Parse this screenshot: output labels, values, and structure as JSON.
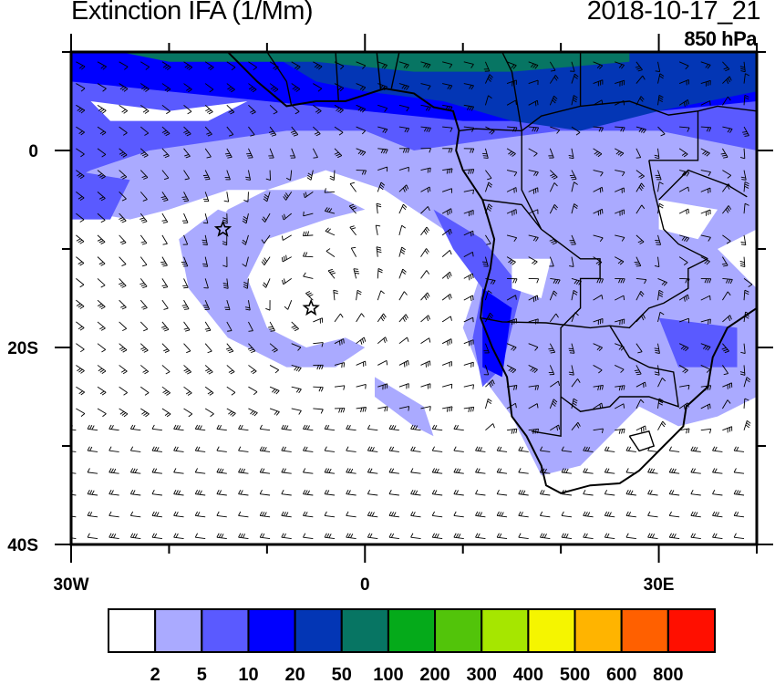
{
  "title_left": "Extinction IFA (1/Mm)",
  "title_right": "2018-10-17_21",
  "level": "850 hPa",
  "map": {
    "lon_range": [
      -30,
      40
    ],
    "lat_range": [
      -40,
      10
    ],
    "x_ticks": [
      {
        "lon": -30,
        "label": "30W"
      },
      {
        "lon": 0,
        "label": "0"
      },
      {
        "lon": 30,
        "label": "30E"
      }
    ],
    "y_ticks": [
      {
        "lat": 0,
        "label": "0"
      },
      {
        "lat": -20,
        "label": "20S"
      },
      {
        "lat": -40,
        "label": "40S"
      }
    ],
    "markers": [
      {
        "name": "star",
        "lon": -14.5,
        "lat": -8
      },
      {
        "name": "star",
        "lon": -5.5,
        "lat": -16
      }
    ]
  },
  "colorbar": {
    "colors": [
      "#ffffff",
      "#aaaaff",
      "#5a5aff",
      "#0000ff",
      "#0336b5",
      "#077563",
      "#05aa1a",
      "#52c40a",
      "#a6e600",
      "#f5f500",
      "#ffb400",
      "#ff6000",
      "#ff0f00"
    ],
    "labels": [
      "2",
      "5",
      "10",
      "20",
      "50",
      "100",
      "200",
      "300",
      "400",
      "500",
      "600",
      "800"
    ]
  }
}
